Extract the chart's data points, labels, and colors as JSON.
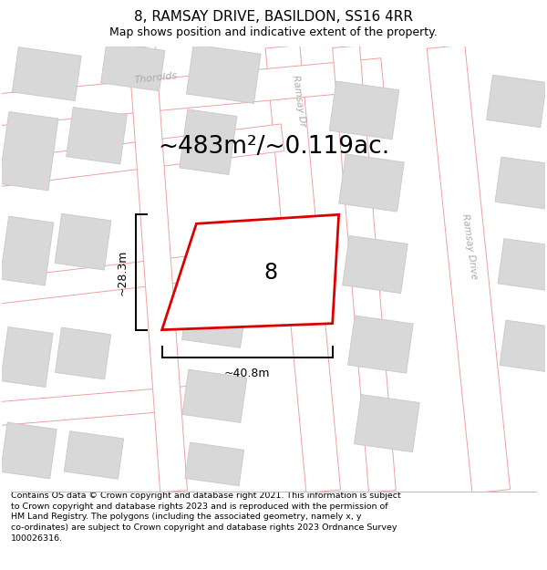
{
  "title": "8, RAMSAY DRIVE, BASILDON, SS16 4RR",
  "subtitle": "Map shows position and indicative extent of the property.",
  "footer": "Contains OS data © Crown copyright and database right 2021. This information is subject\nto Crown copyright and database rights 2023 and is reproduced with the permission of\nHM Land Registry. The polygons (including the associated geometry, namely x, y\nco-ordinates) are subject to Crown copyright and database rights 2023 Ordnance Survey\n100026316.",
  "map_bg": "#f7f7f7",
  "road_line_color": "#f0a0a0",
  "road_fill_color": "#ffffff",
  "block_color": "#d8d8d8",
  "block_ec": "#c8c8c8",
  "plot_outline_color": "#dd0000",
  "area_text": "~483m²/~0.119ac.",
  "dim_width": "~40.8m",
  "dim_height": "~28.3m",
  "plot_number": "8",
  "street_color": "#aaaaaa",
  "fig_width": 6.0,
  "fig_height": 6.25,
  "title_fontsize": 11,
  "subtitle_fontsize": 9,
  "area_fontsize": 19,
  "footer_fontsize": 6.8
}
